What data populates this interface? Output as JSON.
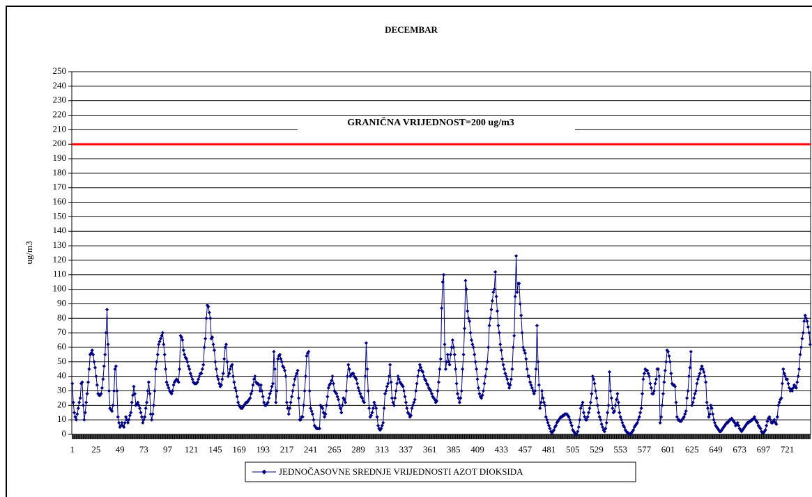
{
  "chart_data": {
    "type": "line",
    "title": "DECEMBAR",
    "y_label": "ug/m3",
    "limit_line": {
      "value": 200,
      "color": "#ff0000",
      "label": "GRANIČNA VRIJEDNOST=200 ug/m3"
    },
    "xlim": [
      0.5,
      744.5
    ],
    "xticks": [
      1,
      25,
      49,
      73,
      97,
      121,
      145,
      169,
      193,
      217,
      241,
      265,
      289,
      313,
      337,
      361,
      385,
      409,
      433,
      457,
      481,
      505,
      529,
      553,
      577,
      601,
      625,
      649,
      673,
      697,
      721
    ],
    "ylim": [
      0,
      250
    ],
    "yticks": [
      0,
      10,
      20,
      30,
      40,
      50,
      60,
      70,
      80,
      90,
      100,
      110,
      120,
      130,
      140,
      150,
      160,
      170,
      180,
      190,
      200,
      210,
      220,
      230,
      240,
      250
    ],
    "grid": true,
    "legend": "bottom",
    "x": [
      1,
      2,
      3,
      4,
      5,
      6,
      7,
      8,
      9,
      10,
      11,
      12,
      13,
      14,
      15,
      16,
      17,
      18,
      19,
      20,
      21,
      22,
      23,
      24,
      25,
      26,
      27,
      28,
      29,
      30,
      31,
      32,
      33,
      34,
      35,
      36,
      37,
      38,
      39,
      40,
      41,
      42,
      43,
      44,
      45,
      46,
      47,
      48,
      49,
      50,
      51,
      52,
      53,
      54,
      55,
      56,
      57,
      58,
      59,
      60,
      61,
      62,
      63,
      64,
      65,
      66,
      67,
      68,
      69,
      70,
      71,
      72,
      73,
      74,
      75,
      76,
      77,
      78,
      79,
      80,
      81,
      82,
      83,
      84,
      85,
      86,
      87,
      88,
      89,
      90,
      91,
      92,
      93,
      94,
      95,
      96,
      97,
      98,
      99,
      100,
      101,
      102,
      103,
      104,
      105,
      106,
      107,
      108,
      109,
      110,
      111,
      112,
      113,
      114,
      115,
      116,
      117,
      118,
      119,
      120,
      121,
      122,
      123,
      124,
      125,
      126,
      127,
      128,
      129,
      130,
      131,
      132,
      133,
      134,
      135,
      136,
      137,
      138,
      139,
      140,
      141,
      142,
      143,
      144,
      145,
      146,
      147,
      148,
      149,
      150,
      151,
      152,
      153,
      154,
      155,
      156,
      157,
      158,
      159,
      160,
      161,
      162,
      163,
      164,
      165,
      166,
      167,
      168,
      169,
      170,
      171,
      172,
      173,
      174,
      175,
      176,
      177,
      178,
      179,
      180,
      181,
      182,
      183,
      184,
      185,
      186,
      187,
      188,
      189,
      190,
      191,
      192,
      193,
      194,
      195,
      196,
      197,
      198,
      199,
      200,
      201,
      202,
      203,
      204,
      205,
      206,
      207,
      208,
      209,
      210,
      211,
      212,
      213,
      214,
      215,
      216,
      217,
      218,
      219,
      220,
      221,
      222,
      223,
      224,
      225,
      226,
      227,
      228,
      229,
      230,
      231,
      232,
      233,
      234,
      235,
      236,
      237,
      238,
      239,
      240,
      241,
      242,
      243,
      244,
      245,
      246,
      247,
      248,
      249,
      250,
      251,
      252,
      253,
      254,
      255,
      256,
      257,
      258,
      259,
      260,
      261,
      262,
      263,
      264,
      265,
      266,
      267,
      268,
      269,
      270,
      271,
      272,
      273,
      274,
      275,
      276,
      277,
      278,
      279,
      280,
      281,
      282,
      283,
      284,
      285,
      286,
      287,
      288,
      289,
      290,
      291,
      292,
      293,
      294,
      295,
      296,
      297,
      298,
      299,
      300,
      301,
      302,
      303,
      304,
      305,
      306,
      307,
      308,
      309,
      310,
      311,
      312,
      313,
      314,
      315,
      316,
      317,
      318,
      319,
      320,
      321,
      322,
      323,
      324,
      325,
      326,
      327,
      328,
      329,
      330,
      331,
      332,
      333,
      334,
      335,
      336,
      337,
      338,
      339,
      340,
      341,
      342,
      343,
      344,
      345,
      346,
      347,
      348,
      349,
      350,
      351,
      352,
      353,
      354,
      355,
      356,
      357,
      358,
      359,
      360,
      361,
      362,
      363,
      364,
      365,
      366,
      367,
      368,
      369,
      370,
      371,
      372,
      373,
      374,
      375,
      376,
      377,
      378,
      379,
      380,
      381,
      382,
      383,
      384,
      385,
      386,
      387,
      388,
      389,
      390,
      391,
      392,
      393,
      394,
      395,
      396,
      397,
      398,
      399,
      400,
      401,
      402,
      403,
      404,
      405,
      406,
      407,
      408,
      409,
      410,
      411,
      412,
      413,
      414,
      415,
      416,
      417,
      418,
      419,
      420,
      421,
      422,
      423,
      424,
      425,
      426,
      427,
      428,
      429,
      430,
      431,
      432,
      433,
      434,
      435,
      436,
      437,
      438,
      439,
      440,
      441,
      442,
      443,
      444,
      445,
      446,
      447,
      448,
      449,
      450,
      451,
      452,
      453,
      454,
      455,
      456,
      457,
      458,
      459,
      460,
      461,
      462,
      463,
      464,
      465,
      466,
      467,
      468,
      469,
      470,
      471,
      472,
      473,
      474,
      475,
      476,
      477,
      478,
      479,
      480,
      481,
      482,
      483,
      484,
      485,
      486,
      487,
      488,
      489,
      490,
      491,
      492,
      493,
      494,
      495,
      496,
      497,
      498,
      499,
      500,
      501,
      502,
      503,
      504,
      505,
      506,
      507,
      508,
      509,
      510,
      511,
      512,
      513,
      514,
      515,
      516,
      517,
      518,
      519,
      520,
      521,
      522,
      523,
      524,
      525,
      526,
      527,
      528,
      529,
      530,
      531,
      532,
      533,
      534,
      535,
      536,
      537,
      538,
      539,
      540,
      541,
      542,
      543,
      544,
      545,
      546,
      547,
      548,
      549,
      550,
      551,
      552,
      553,
      554,
      555,
      556,
      557,
      558,
      559,
      560,
      561,
      562,
      563,
      564,
      565,
      566,
      567,
      568,
      569,
      570,
      571,
      572,
      573,
      574,
      575,
      576,
      577,
      578,
      579,
      580,
      581,
      582,
      583,
      584,
      585,
      586,
      587,
      588,
      589,
      590,
      591,
      592,
      593,
      594,
      595,
      596,
      597,
      598,
      599,
      600,
      601,
      602,
      603,
      604,
      605,
      606,
      607,
      608,
      609,
      610,
      611,
      612,
      613,
      614,
      615,
      616,
      617,
      618,
      619,
      620,
      621,
      622,
      623,
      624,
      625,
      626,
      627,
      628,
      629,
      630,
      631,
      632,
      633,
      634,
      635,
      636,
      637,
      638,
      639,
      640,
      641,
      642,
      643,
      644,
      645,
      646,
      647,
      648,
      649,
      650,
      651,
      652,
      653,
      654,
      655,
      656,
      657,
      658,
      659,
      660,
      661,
      662,
      663,
      664,
      665,
      666,
      667,
      668,
      669,
      670,
      671,
      672,
      673,
      674,
      675,
      676,
      677,
      678,
      679,
      680,
      681,
      682,
      683,
      684,
      685,
      686,
      687,
      688,
      689,
      690,
      691,
      692,
      693,
      694,
      695,
      696,
      697,
      698,
      699,
      700,
      701,
      702,
      703,
      704,
      705,
      706,
      707,
      708,
      709,
      710,
      711,
      712,
      713,
      714,
      715,
      716,
      717,
      718,
      719,
      720,
      721,
      722,
      723,
      724,
      725,
      726,
      727,
      728,
      729,
      730,
      731,
      732,
      733,
      734,
      735,
      736,
      737,
      738,
      739,
      740,
      741,
      742,
      743,
      744
    ],
    "series": [
      {
        "name": "JEDNOČASOVNE SREDNJE VRIJEDNOSTI AZOT DIOKSIDA",
        "color": "#000080",
        "values": [
          35,
          22,
          15,
          12,
          10,
          14,
          18,
          22,
          25,
          35,
          36,
          20,
          10,
          15,
          22,
          28,
          36,
          45,
          55,
          56,
          58,
          55,
          50,
          46,
          40,
          34,
          28,
          27,
          27,
          28,
          32,
          38,
          47,
          55,
          70,
          86,
          62,
          30,
          18,
          17,
          16,
          20,
          30,
          45,
          47,
          30,
          12,
          8,
          5,
          6,
          8,
          6,
          5,
          8,
          12,
          10,
          8,
          10,
          13,
          15,
          22,
          27,
          33,
          28,
          20,
          21,
          22,
          20,
          18,
          15,
          12,
          8,
          10,
          12,
          18,
          22,
          30,
          36,
          28,
          14,
          10,
          14,
          20,
          30,
          45,
          50,
          55,
          62,
          64,
          66,
          68,
          70,
          62,
          55,
          45,
          36,
          34,
          32,
          30,
          29,
          28,
          30,
          34,
          36,
          37,
          38,
          37,
          36,
          45,
          68,
          67,
          65,
          58,
          55,
          53,
          52,
          50,
          47,
          45,
          42,
          40,
          38,
          36,
          35,
          35,
          35,
          36,
          38,
          40,
          42,
          42,
          45,
          48,
          60,
          66,
          80,
          89,
          88,
          84,
          80,
          66,
          67,
          62,
          58,
          50,
          45,
          40,
          38,
          35,
          33,
          34,
          38,
          42,
          52,
          60,
          62,
          50,
          40,
          42,
          45,
          47,
          48,
          40,
          36,
          32,
          30,
          26,
          22,
          20,
          19,
          18,
          18,
          19,
          20,
          21,
          22,
          22,
          23,
          24,
          25,
          28,
          30,
          34,
          38,
          40,
          36,
          35,
          35,
          34,
          30,
          34,
          30,
          26,
          22,
          20,
          20,
          21,
          22,
          25,
          28,
          30,
          33,
          35,
          57,
          45,
          22,
          30,
          52,
          54,
          55,
          52,
          50,
          47,
          46,
          44,
          40,
          22,
          18,
          14,
          18,
          22,
          26,
          30,
          34,
          38,
          40,
          42,
          44,
          25,
          10,
          10,
          12,
          12,
          20,
          30,
          40,
          54,
          56,
          57,
          30,
          18,
          16,
          14,
          10,
          6,
          5,
          4,
          4,
          4,
          4,
          20,
          19,
          18,
          15,
          12,
          14,
          20,
          26,
          32,
          34,
          35,
          37,
          40,
          35,
          30,
          29,
          28,
          26,
          24,
          20,
          18,
          15,
          20,
          25,
          24,
          22,
          30,
          40,
          48,
          45,
          40,
          41,
          42,
          42,
          40,
          39,
          38,
          35,
          32,
          30,
          28,
          26,
          25,
          23,
          22,
          40,
          63,
          45,
          30,
          18,
          12,
          13,
          15,
          18,
          22,
          20,
          18,
          12,
          6,
          4,
          3,
          4,
          6,
          8,
          18,
          28,
          30,
          33,
          35,
          40,
          48,
          36,
          25,
          22,
          20,
          25,
          30,
          35,
          40,
          38,
          36,
          35,
          34,
          33,
          30,
          26,
          22,
          18,
          15,
          14,
          12,
          13,
          18,
          20,
          22,
          24,
          30,
          35,
          40,
          44,
          48,
          46,
          44,
          43,
          40,
          38,
          37,
          35,
          34,
          32,
          31,
          30,
          28,
          26,
          25,
          24,
          22,
          23,
          30,
          36,
          45,
          52,
          87,
          105,
          110,
          62,
          45,
          50,
          55,
          50,
          48,
          55,
          60,
          65,
          60,
          55,
          45,
          35,
          28,
          25,
          22,
          25,
          30,
          45,
          55,
          73,
          106,
          100,
          85,
          80,
          78,
          70,
          65,
          62,
          60,
          55,
          50,
          45,
          38,
          32,
          28,
          26,
          25,
          27,
          30,
          35,
          40,
          45,
          50,
          60,
          75,
          80,
          86,
          92,
          98,
          100,
          112,
          95,
          85,
          75,
          70,
          62,
          58,
          52,
          48,
          45,
          42,
          40,
          38,
          35,
          32,
          34,
          38,
          45,
          60,
          68,
          95,
          123,
          98,
          104,
          104,
          90,
          82,
          70,
          60,
          58,
          56,
          52,
          45,
          40,
          40,
          36,
          34,
          32,
          30,
          28,
          30,
          45,
          75,
          50,
          34,
          18,
          22,
          30,
          25,
          22,
          20,
          12,
          10,
          8,
          6,
          4,
          2,
          1,
          2,
          3,
          5,
          6,
          8,
          9,
          10,
          11,
          12,
          12,
          13,
          13,
          14,
          14,
          14,
          13,
          12,
          10,
          8,
          6,
          3,
          2,
          1,
          0,
          0,
          2,
          5,
          10,
          18,
          20,
          22,
          15,
          12,
          10,
          10,
          12,
          15,
          18,
          22,
          28,
          40,
          38,
          35,
          30,
          25,
          20,
          15,
          12,
          10,
          7,
          5,
          3,
          2,
          4,
          8,
          15,
          20,
          43,
          30,
          25,
          18,
          15,
          16,
          20,
          24,
          28,
          22,
          15,
          12,
          10,
          8,
          6,
          5,
          3,
          2,
          1,
          1,
          0,
          0,
          1,
          2,
          3,
          5,
          6,
          7,
          8,
          10,
          12,
          15,
          18,
          28,
          38,
          42,
          45,
          44,
          44,
          42,
          40,
          35,
          32,
          28,
          28,
          30,
          35,
          38,
          45,
          45,
          40,
          8,
          12,
          20,
          28,
          36,
          44,
          50,
          58,
          57,
          54,
          50,
          42,
          35,
          34,
          34,
          33,
          22,
          12,
          10,
          10,
          9,
          9,
          10,
          11,
          12,
          14,
          16,
          25,
          30,
          40,
          46,
          57,
          20,
          22,
          25,
          28,
          30,
          35,
          38,
          40,
          42,
          45,
          47,
          45,
          43,
          40,
          36,
          22,
          18,
          12,
          14,
          20,
          18,
          14,
          10,
          8,
          6,
          5,
          4,
          3,
          2,
          2,
          3,
          4,
          5,
          6,
          7,
          8,
          8,
          9,
          10,
          10,
          11,
          10,
          9,
          8,
          6,
          7,
          8,
          6,
          4,
          3,
          2,
          3,
          4,
          5,
          6,
          7,
          8,
          8,
          9,
          9,
          10,
          10,
          11,
          12,
          10,
          9,
          8,
          6,
          5,
          4,
          2,
          1,
          1,
          2,
          3,
          6,
          9,
          11,
          12,
          10,
          8,
          8,
          9,
          10,
          8,
          7,
          12,
          20,
          22,
          24,
          25,
          35,
          45,
          42,
          40,
          38,
          38,
          35,
          32,
          30,
          31,
          30,
          32,
          34,
          33,
          32,
          36,
          40,
          45,
          55,
          60,
          66,
          70,
          78,
          82,
          80,
          78,
          74,
          70,
          62
        ]
      }
    ]
  }
}
